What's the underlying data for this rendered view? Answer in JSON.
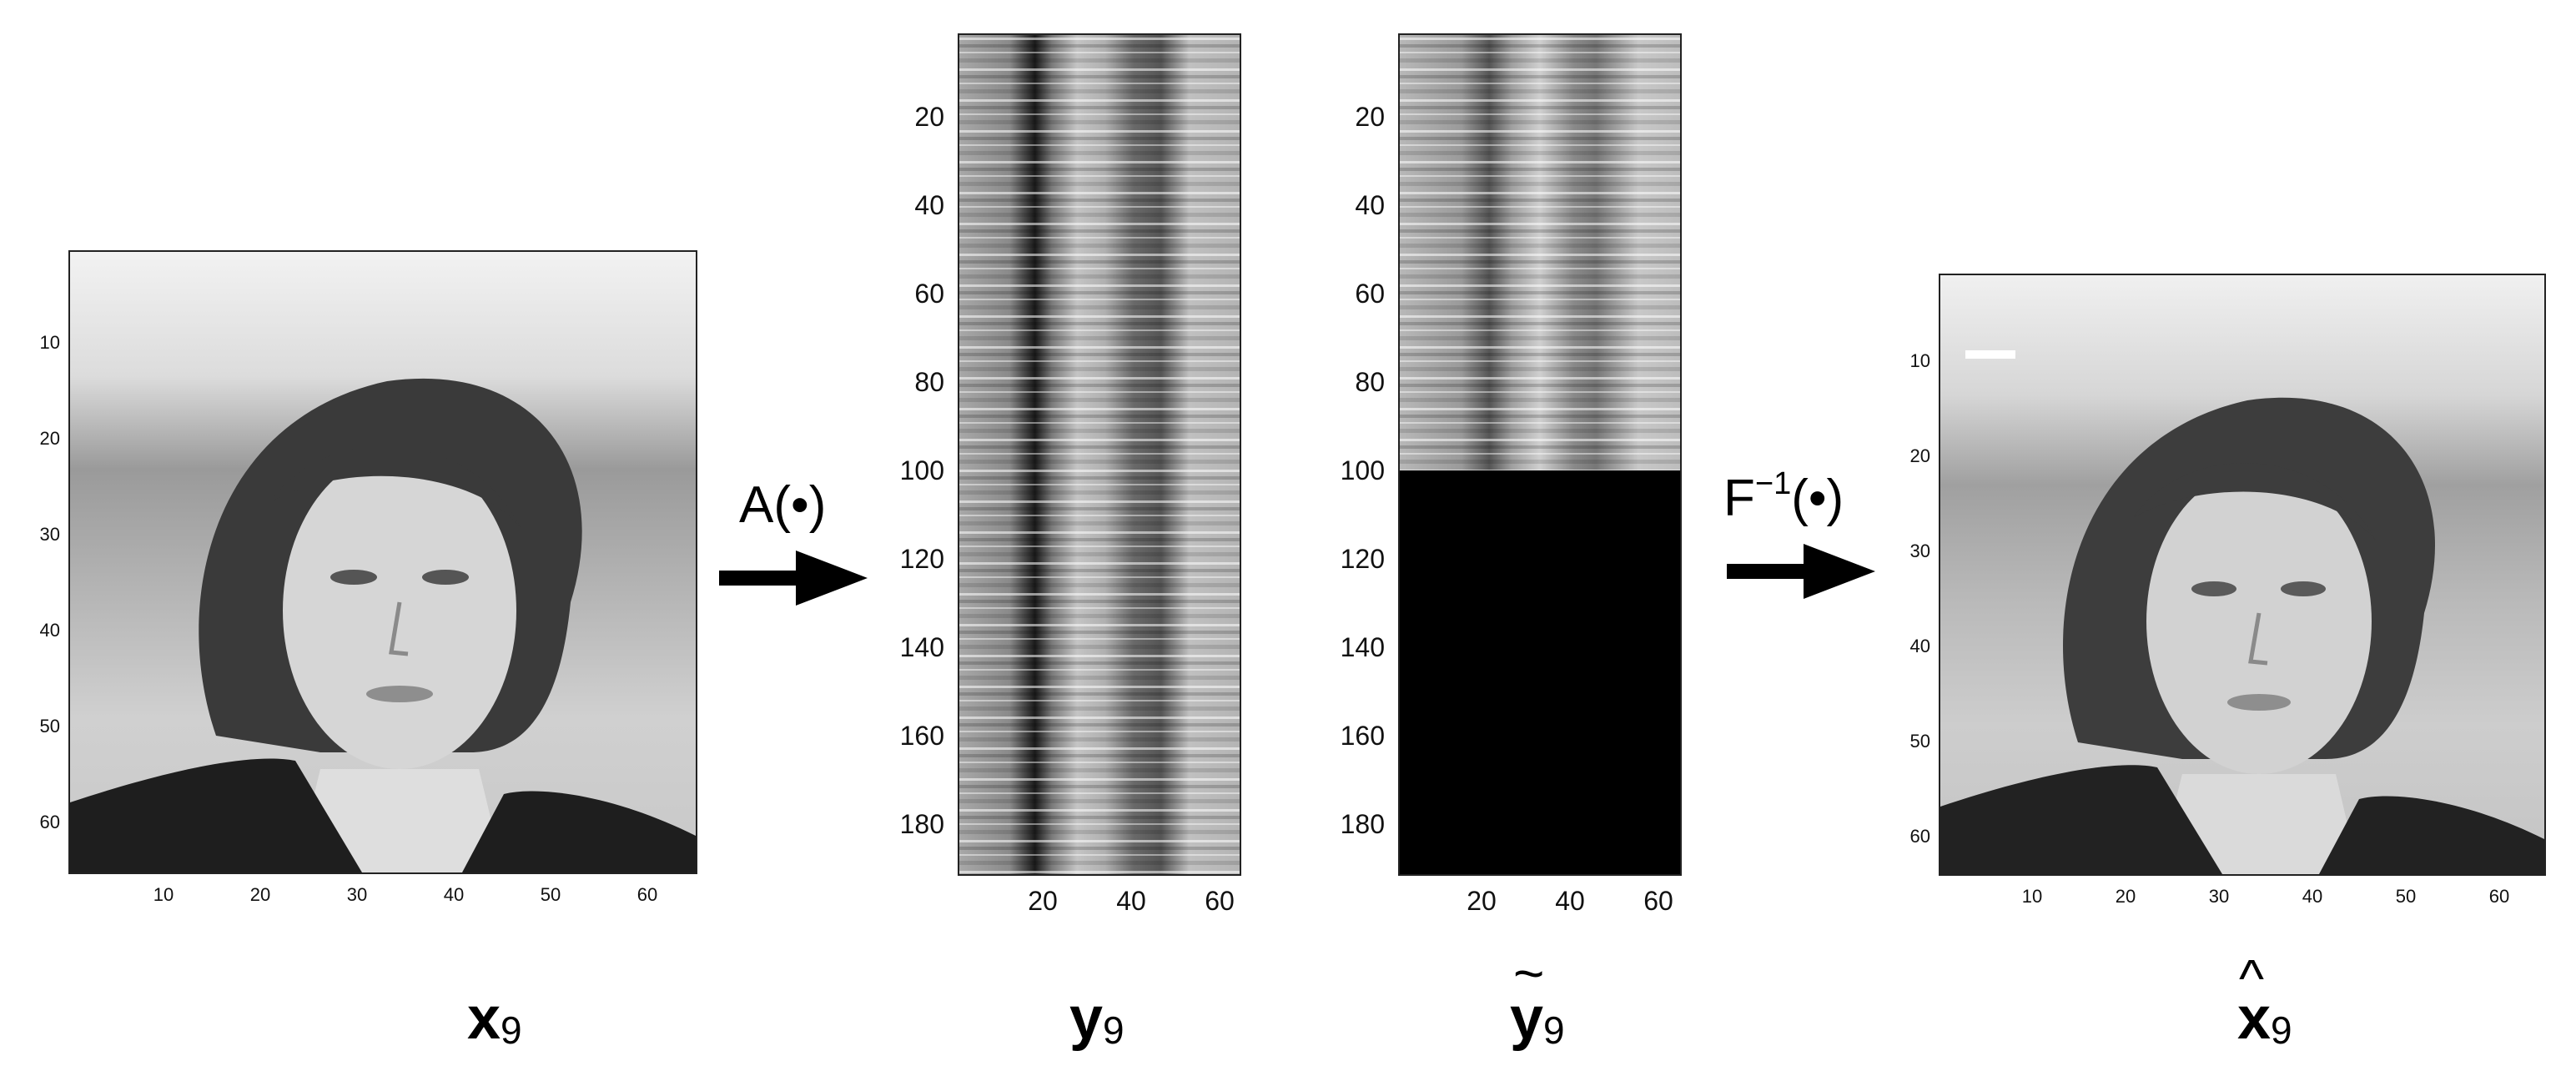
{
  "panels": {
    "x9": {
      "caption_base": "x",
      "caption_sub": "9",
      "y_ticks": [
        "10",
        "20",
        "30",
        "40",
        "50",
        "60"
      ],
      "x_ticks": [
        "10",
        "20",
        "30",
        "40",
        "50",
        "60"
      ]
    },
    "y9": {
      "caption_base": "y",
      "caption_sub": "9",
      "y_ticks": [
        "20",
        "40",
        "60",
        "80",
        "100",
        "120",
        "140",
        "160",
        "180"
      ],
      "x_ticks": [
        "20",
        "40",
        "60"
      ]
    },
    "y9_tilde": {
      "caption_base": "y",
      "caption_sub": "9",
      "caption_accent": "~",
      "y_ticks": [
        "20",
        "40",
        "60",
        "80",
        "100",
        "120",
        "140",
        "160",
        "180"
      ],
      "x_ticks": [
        "20",
        "40",
        "60"
      ]
    },
    "x9_hat": {
      "caption_base": "x",
      "caption_sub": "9",
      "caption_accent": "^",
      "y_ticks": [
        "10",
        "20",
        "30",
        "40",
        "50",
        "60"
      ],
      "x_ticks": [
        "10",
        "20",
        "30",
        "40",
        "50",
        "60"
      ]
    }
  },
  "operators": {
    "forward_pre": "A(",
    "forward_dot": "•",
    "forward_post": ")",
    "inverse_pre": "F",
    "inverse_sup": "−1",
    "inverse_paren": "(•)"
  },
  "colors": {
    "axis": "#222222",
    "background": "#ffffff",
    "zeroed_region": "#000000"
  },
  "icons": [
    "right-arrow-icon",
    "right-arrow-icon"
  ]
}
